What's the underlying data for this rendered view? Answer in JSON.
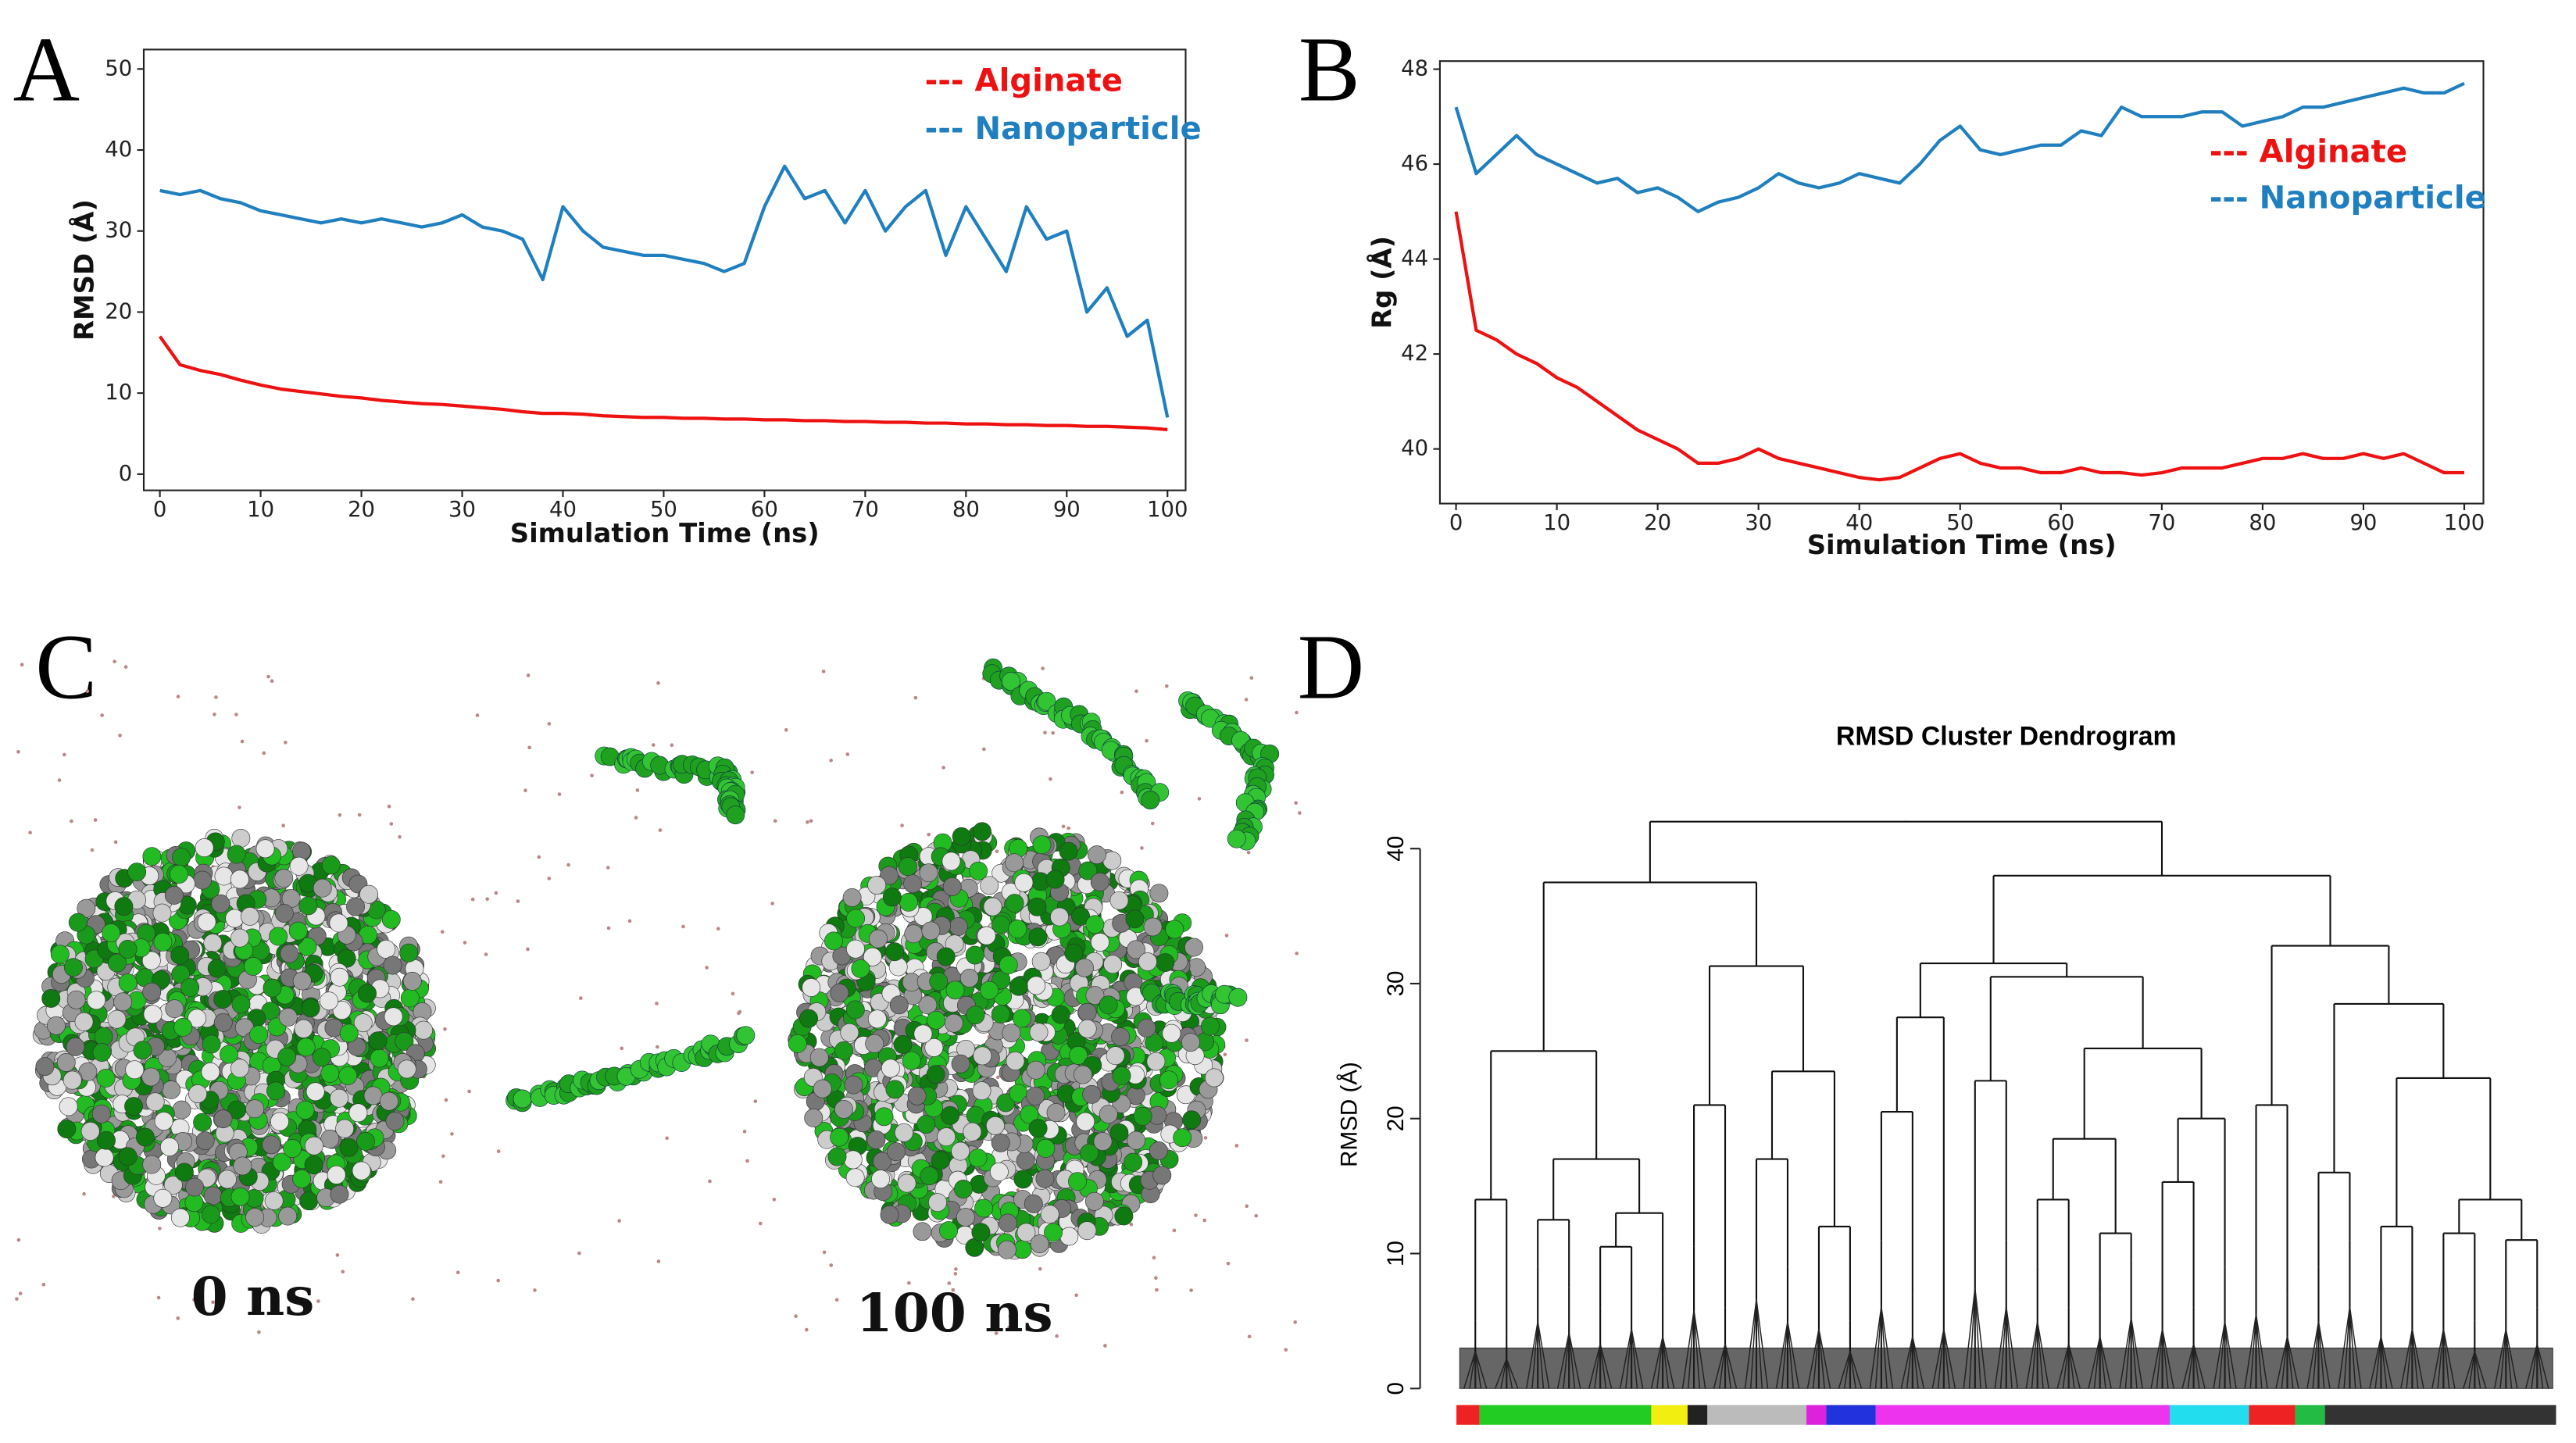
{
  "panel_letters": [
    "A",
    "B",
    "C",
    "D"
  ],
  "panel_c": {
    "labels": [
      "0 ns",
      "100 ns"
    ]
  },
  "chart_data": [
    {
      "type": "line",
      "xlabel": "Simulation Time (ns)",
      "ylabel": "RMSD (Å)",
      "xlim": [
        -1.6,
        101.8
      ],
      "ylim": [
        -2,
        52.4
      ],
      "xticks": [
        0,
        10,
        20,
        30,
        40,
        50,
        60,
        70,
        80,
        90,
        100
      ],
      "yticks": [
        0,
        10,
        20,
        30,
        40,
        50
      ],
      "legend": "upper right",
      "x": [
        0,
        2,
        4,
        6,
        8,
        10,
        12,
        14,
        16,
        18,
        20,
        22,
        24,
        26,
        28,
        30,
        32,
        34,
        36,
        38,
        40,
        42,
        44,
        46,
        48,
        50,
        52,
        54,
        56,
        58,
        60,
        62,
        64,
        66,
        68,
        70,
        72,
        74,
        76,
        78,
        80,
        82,
        84,
        86,
        88,
        90,
        92,
        94,
        96,
        98,
        100
      ],
      "series": [
        {
          "name": "--- Alginate",
          "color": "#ee1111",
          "values": [
            17,
            13.5,
            12.8,
            12.3,
            11.6,
            11,
            10.5,
            10.2,
            9.9,
            9.6,
            9.4,
            9.1,
            8.9,
            8.7,
            8.6,
            8.4,
            8.2,
            8,
            7.7,
            7.5,
            7.5,
            7.4,
            7.2,
            7.1,
            7,
            7,
            6.9,
            6.9,
            6.8,
            6.8,
            6.7,
            6.7,
            6.6,
            6.6,
            6.5,
            6.5,
            6.4,
            6.4,
            6.3,
            6.3,
            6.2,
            6.2,
            6.1,
            6.1,
            6,
            6,
            5.9,
            5.9,
            5.8,
            5.7,
            5.5
          ]
        },
        {
          "name": "--- Nanoparticle",
          "color": "#1f7fbf",
          "values": [
            35,
            34.5,
            35,
            34,
            33.5,
            32.5,
            32,
            31.5,
            31,
            31.5,
            31,
            31.5,
            31,
            30.5,
            31,
            32,
            30.5,
            30,
            29,
            24,
            33,
            30,
            28,
            27.5,
            27,
            27,
            26.5,
            26,
            25,
            26,
            33,
            38,
            34,
            35,
            31,
            35,
            30,
            33,
            35,
            27,
            33,
            29,
            25,
            33,
            29,
            30,
            20,
            23,
            17,
            19,
            7
          ]
        }
      ]
    },
    {
      "type": "line",
      "xlabel": "Simulation Time (ns)",
      "ylabel": "Rg (Å)",
      "xlim": [
        -1.6,
        101.9
      ],
      "ylim": [
        38.85,
        48.17
      ],
      "xticks": [
        0,
        10,
        20,
        30,
        40,
        50,
        60,
        70,
        80,
        90,
        100
      ],
      "yticks": [
        40,
        42,
        44,
        46,
        48
      ],
      "legend": "center right",
      "x": [
        0,
        2,
        4,
        6,
        8,
        10,
        12,
        14,
        16,
        18,
        20,
        22,
        24,
        26,
        28,
        30,
        32,
        34,
        36,
        38,
        40,
        42,
        44,
        46,
        48,
        50,
        52,
        54,
        56,
        58,
        60,
        62,
        64,
        66,
        68,
        70,
        72,
        74,
        76,
        78,
        80,
        82,
        84,
        86,
        88,
        90,
        92,
        94,
        96,
        98,
        100
      ],
      "series": [
        {
          "name": "--- Alginate",
          "color": "#ee1111",
          "values": [
            45,
            42.5,
            42.3,
            42,
            41.8,
            41.5,
            41.3,
            41,
            40.7,
            40.4,
            40.2,
            40,
            39.7,
            39.7,
            39.8,
            40,
            39.8,
            39.7,
            39.6,
            39.5,
            39.4,
            39.35,
            39.4,
            39.6,
            39.8,
            39.9,
            39.7,
            39.6,
            39.6,
            39.5,
            39.5,
            39.6,
            39.5,
            39.5,
            39.45,
            39.5,
            39.6,
            39.6,
            39.6,
            39.7,
            39.8,
            39.8,
            39.9,
            39.8,
            39.8,
            39.9,
            39.8,
            39.9,
            39.7,
            39.5,
            39.5
          ]
        },
        {
          "name": "--- Nanoparticle",
          "color": "#1f7fbf",
          "values": [
            47.2,
            45.8,
            46.2,
            46.6,
            46.2,
            46,
            45.8,
            45.6,
            45.7,
            45.4,
            45.5,
            45.3,
            45,
            45.2,
            45.3,
            45.5,
            45.8,
            45.6,
            45.5,
            45.6,
            45.8,
            45.7,
            45.6,
            46,
            46.5,
            46.8,
            46.3,
            46.2,
            46.3,
            46.4,
            46.4,
            46.7,
            46.6,
            47.2,
            47,
            47,
            47,
            47.1,
            47.1,
            46.8,
            46.9,
            47,
            47.2,
            47.2,
            47.3,
            47.4,
            47.5,
            47.6,
            47.5,
            47.5,
            47.7
          ]
        }
      ]
    },
    {
      "type": "dendrogram",
      "title": "RMSD Cluster Dendrogram",
      "ylabel": "RMSD (Å)",
      "ylim": [
        0,
        40
      ],
      "yticks": [
        0,
        10,
        20,
        30,
        40
      ],
      "tree": {
        "h": 42,
        "c": [
          {
            "h": 37.5,
            "c": [
              {
                "h": 25,
                "c": [
                  {
                    "h": 14,
                    "c": [
                      5,
                      4
                    ]
                  },
                  {
                    "h": 17,
                    "c": [
                      {
                        "h": 12.5,
                        "c": [
                          9,
                          7.5
                        ]
                      },
                      {
                        "h": 13,
                        "c": [
                          {
                            "h": 10.5,
                            "c": [
                              6,
                              8
                            ]
                          },
                          7
                        ]
                      }
                    ]
                  }
                ]
              },
              {
                "h": 31.3,
                "c": [
                  {
                    "h": 21,
                    "c": [
                      10.5,
                      6
                    ]
                  },
                  {
                    "h": 23.5,
                    "c": [
                      {
                        "h": 17,
                        "c": [
                          12,
                          9
                        ]
                      },
                      {
                        "h": 12,
                        "c": [
                          8,
                          5
                        ]
                      }
                    ]
                  }
                ]
              }
            ]
          },
          {
            "h": 38,
            "c": [
              {
                "h": 31.5,
                "c": [
                  {
                    "h": 27.5,
                    "c": [
                      {
                        "h": 20.5,
                        "c": [
                          11,
                          7
                        ]
                      },
                      8
                    ]
                  },
                  {
                    "h": 30.5,
                    "c": [
                      {
                        "h": 22.8,
                        "c": [
                          13.5,
                          11
                        ]
                      },
                      {
                        "h": 25.2,
                        "c": [
                          {
                            "h": 18.5,
                            "c": [
                              {
                                "h": 14,
                                "c": [
                                  9,
                                  6
                                ]
                              },
                              {
                                "h": 11.5,
                                "c": [
                                  7,
                                  9.5
                                ]
                              }
                            ]
                          },
                          {
                            "h": 20,
                            "c": [
                              {
                                "h": 15.3,
                                "c": [
                                  8,
                                  6
                                ]
                              },
                              9
                            ]
                          }
                        ]
                      }
                    ]
                  }
                ]
              },
              {
                "h": 32.8,
                "c": [
                  {
                    "h": 21,
                    "c": [
                      10,
                      7
                    ]
                  },
                  {
                    "h": 28.5,
                    "c": [
                      {
                        "h": 16,
                        "c": [
                          9,
                          11
                        ]
                      },
                      {
                        "h": 23,
                        "c": [
                          {
                            "h": 12,
                            "c": [
                              7,
                              8
                            ]
                          },
                          {
                            "h": 14,
                            "c": [
                              {
                                "h": 11.5,
                                "c": [
                                  8,
                                  5
                                ]
                              },
                              {
                                "h": 11,
                                "c": [
                                  8,
                                  6
                                ]
                              }
                            ]
                          }
                        ]
                      }
                    ]
                  }
                ]
              }
            ]
          }
        ]
      }
    }
  ]
}
